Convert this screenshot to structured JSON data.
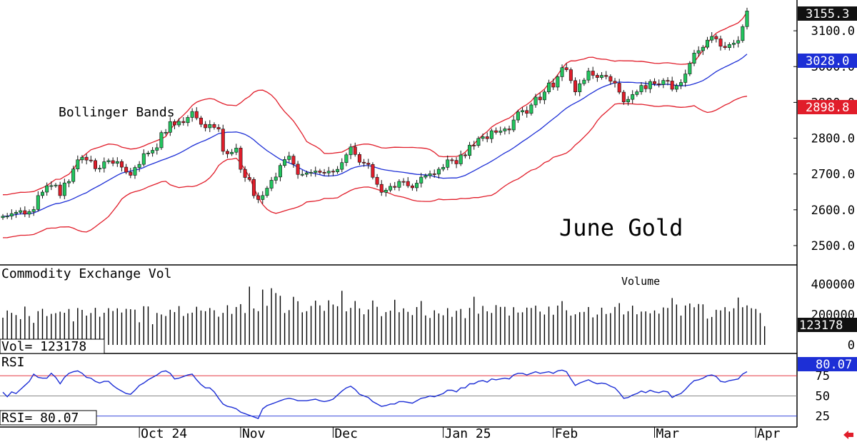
{
  "chart_data": {
    "type": "candlestick",
    "title": "June Gold",
    "annotations": {
      "bollinger": "Bollinger Bands"
    },
    "x_axis": {
      "months": [
        {
          "label": "Oct 24",
          "index": 31
        },
        {
          "label": "Nov",
          "index": 54
        },
        {
          "label": "Dec",
          "index": 75
        },
        {
          "label": "Jan 25",
          "index": 100
        },
        {
          "label": "Feb",
          "index": 125
        },
        {
          "label": "Mar",
          "index": 148
        },
        {
          "label": "Apr",
          "index": 172
        }
      ]
    },
    "colors": {
      "up": "#22c55e",
      "down": "#e11d2a",
      "middle_band": "#1d2fd6",
      "outer_band": "#e11d2a",
      "rsi": "#1d2fd6"
    },
    "price_panel": {
      "ylim": [
        2450,
        3170
      ],
      "tick_labels": [
        "3100.0",
        "3000.0",
        "2900.0",
        "2800.0",
        "2700.0",
        "2600.0",
        "2500.0"
      ],
      "tick_values": [
        3100,
        3000,
        2900,
        2800,
        2700,
        2600,
        2500
      ],
      "last_price": {
        "text": "3155.3",
        "value": 3155.3,
        "color": "#000000"
      },
      "middle_band_label": {
        "text": "3028.0",
        "value": 3028.0,
        "color": "#1d2fd6"
      },
      "lower_band_label": {
        "text": "2898.8",
        "value": 2898.8,
        "color": "#e11d2a"
      },
      "close": [
        2582.0,
        2582.4,
        2589.4,
        2592.9,
        2597.6,
        2587.8,
        2595.0,
        2600.9,
        2639.7,
        2649.4,
        2667.2,
        2667.5,
        2669.1,
        2639.6,
        2675.0,
        2679.0,
        2714.0,
        2739.6,
        2746.9,
        2738.9,
        2737.6,
        2714.7,
        2716.1,
        2734.1,
        2737.3,
        2729.7,
        2734.8,
        2719.1,
        2705.2,
        2696.4,
        2718.1,
        2726.9,
        2756.9,
        2758.5,
        2766.2,
        2773.3,
        2815.6,
        2816.4,
        2846.4,
        2836.9,
        2846.8,
        2843.3,
        2858.0,
        2874.6,
        2856.4,
        2838.7,
        2829.0,
        2838.3,
        2830.0,
        2825.5,
        2763.4,
        2756.3,
        2760.7,
        2772.4,
        2713.0,
        2690.3,
        2684.9,
        2639.4,
        2628.6,
        2639.9,
        2660.3,
        2682.5,
        2691.6,
        2723.8,
        2740.4,
        2749.9,
        2727.4,
        2698.7,
        2699.1,
        2703.2,
        2704.3,
        2708.4,
        2704.6,
        2702.9,
        2707.8,
        2706.0,
        2713.0,
        2731.8,
        2753.6,
        2775.5,
        2754.5,
        2732.8,
        2730.3,
        2726.6,
        2690.8,
        2671.0,
        2648.9,
        2654.9,
        2665.5,
        2662.7,
        2679.3,
        2679.2,
        2666.9,
        2661.5,
        2674.4,
        2691.2,
        2695.3,
        2700.6,
        2699.5,
        2713.4,
        2718.6,
        2739.5,
        2738.0,
        2728.3,
        2753.3,
        2751.7,
        2780.6,
        2779.7,
        2799.3,
        2804.1,
        2798.6,
        2820.9,
        2816.2,
        2820.2,
        2826.1,
        2823.0,
        2850.8,
        2873.3,
        2877.3,
        2869.3,
        2892.9,
        2914.9,
        2907.0,
        2929.2,
        2954.3,
        2942.7,
        2971.7,
        2997.0,
        2991.3,
        2960.9,
        2929.3,
        2952.2,
        2962.3,
        2987.5,
        2975.6,
        2969.5,
        2975.5,
        2972.3,
        2959.1,
        2953.6,
        2928.6,
        2901.2,
        2908.4,
        2922.0,
        2929.5,
        2947.3,
        2938.1,
        2958.3,
        2951.9,
        2949.9,
        2961.4,
        2959.7,
        2936.6,
        2946.9,
        2955.6,
        2979.4,
        3009.1,
        3037.7,
        3044.5,
        3054.1,
        3073.9,
        3084.2,
        3077.3,
        3056.8,
        3052.9,
        3061.7,
        3065.5,
        3072.7,
        3111.7,
        3155.3
      ]
    },
    "volume_panel": {
      "title": "Commodity Exchange Vol",
      "label": "Volume",
      "ylim": [
        0,
        480000
      ],
      "tick_labels": [
        "400000",
        "200000",
        "0"
      ],
      "tick_values": [
        400000,
        200000,
        0
      ],
      "readout": {
        "text": "Vol=    123178"
      },
      "last_value": {
        "text": "123178",
        "value": 123178
      },
      "values": [
        179310,
        226490,
        211024,
        196520,
        169778,
        252500,
        190045,
        145211,
        222350,
        237813,
        189924,
        204592,
        209225,
        218813,
        211669,
        236689,
        155022,
        242848,
        230733,
        192908,
        210209,
        244226,
        185665,
        211883,
        242016,
        223322,
        241114,
        213271,
        237617,
        235025,
        232174,
        148998,
        254808,
        253187,
        136242,
        210489,
        200287,
        190315,
        231553,
        216103,
        255751,
        190521,
        207734,
        212436,
        251225,
        226429,
        222130,
        242864,
        228103,
        185919,
        210993,
        261327,
        204311,
        249664,
        268522,
        210119,
        383999,
        240108,
        222287,
        364407,
        257600,
        373401,
        341637,
        323542,
        210187,
        229000,
        316734,
        287853,
        214555,
        222119,
        256680,
        291633,
        260298,
        224316,
        293521,
        265839,
        254706,
        356346,
        221283,
        243856,
        289211,
        240612,
        201575,
        233311,
        292405,
        250839,
        189244,
        216221,
        225713,
        297286,
        215327,
        240689,
        217911,
        196373,
        249327,
        289218,
        193934,
        177201,
        227932,
        207208,
        195049,
        242203,
        184812,
        224683,
        236815,
        176138,
        243657,
        317163,
        205787,
        256838,
        221288,
        210562,
        262210,
        250227,
        250787,
        193208,
        248542,
        213216,
        214787,
        245627,
        243113,
        258587,
        219545,
        200012,
        252233,
        198715,
        259087,
        288566,
        227926,
        192910,
        201569,
        215592,
        217391,
        249577,
        181359,
        200015,
        245212,
        203521,
        209286,
        250269,
        275187,
        200637,
        221924,
        258562,
        201768,
        219616,
        220709,
        208087,
        226938,
        206216,
        246722,
        243346,
        308622,
        266109,
        193187,
        259519,
        272711,
        247999,
        269510,
        267210,
        173226,
        184049,
        231289,
        227312,
        248576,
        220130,
        241316,
        312025,
        248195,
        260208,
        241599,
        236999,
        209683,
        123178
      ]
    },
    "rsi_panel": {
      "title": "RSI",
      "ylim": [
        15,
        92
      ],
      "tick_labels": [
        "75",
        "50",
        "25"
      ],
      "tick_values": [
        75,
        50,
        25
      ],
      "readout": {
        "text": "RSI=    80.07"
      },
      "last_value": {
        "text": "80.07",
        "value": 80.07
      },
      "values": [
        54.6,
        49.0,
        55.0,
        53.0,
        58.0,
        63.0,
        68.0,
        77.0,
        73.0,
        72.0,
        72.0,
        78.0,
        73.0,
        65.0,
        73.0,
        78.0,
        80.0,
        81.0,
        78.0,
        73.0,
        72.0,
        68.0,
        66.0,
        68.0,
        68.0,
        63.0,
        59.0,
        56.0,
        53.0,
        52.0,
        57.0,
        63.0,
        66.0,
        70.0,
        73.0,
        76.0,
        80.0,
        81.0,
        78.0,
        71.0,
        72.0,
        74.0,
        76.0,
        77.0,
        70.0,
        64.0,
        60.0,
        60.0,
        55.0,
        47.0,
        40.0,
        37.0,
        36.0,
        34.0,
        30.0,
        28.0,
        26.0,
        24.0,
        22.0,
        34.0,
        38.0,
        40.0,
        42.0,
        44.0,
        46.0,
        47.0,
        46.0,
        44.0,
        44.0,
        44.0,
        45.0,
        46.0,
        44.0,
        43.0,
        44.0,
        46.0,
        51.0,
        56.0,
        60.0,
        62.0,
        58.0,
        52.0,
        50.0,
        48.0,
        43.0,
        40.0,
        37.0,
        38.0,
        40.0,
        40.0,
        43.0,
        43.0,
        42.0,
        41.0,
        44.0,
        47.0,
        48.0,
        50.0,
        49.0,
        51.0,
        53.0,
        57.0,
        57.0,
        55.0,
        60.0,
        60.0,
        65.0,
        65.0,
        68.0,
        69.0,
        67.0,
        71.0,
        70.0,
        71.0,
        72.0,
        71.0,
        76.0,
        78.0,
        78.0,
        76.0,
        78.0,
        80.0,
        78.0,
        79.0,
        80.0,
        78.0,
        81.0,
        82.0,
        80.0,
        71.0,
        63.0,
        66.0,
        68.0,
        70.0,
        67.0,
        65.0,
        66.0,
        65.0,
        62.0,
        60.0,
        54.0,
        47.0,
        48.0,
        51.0,
        53.0,
        56.0,
        54.0,
        57.0,
        55.0,
        54.0,
        56.0,
        55.0,
        48.0,
        51.0,
        53.0,
        58.0,
        64.0,
        69.0,
        70.0,
        72.0,
        75.0,
        76.0,
        74.0,
        68.0,
        67.0,
        69.0,
        70.0,
        71.0,
        77.0,
        80.07
      ]
    }
  }
}
